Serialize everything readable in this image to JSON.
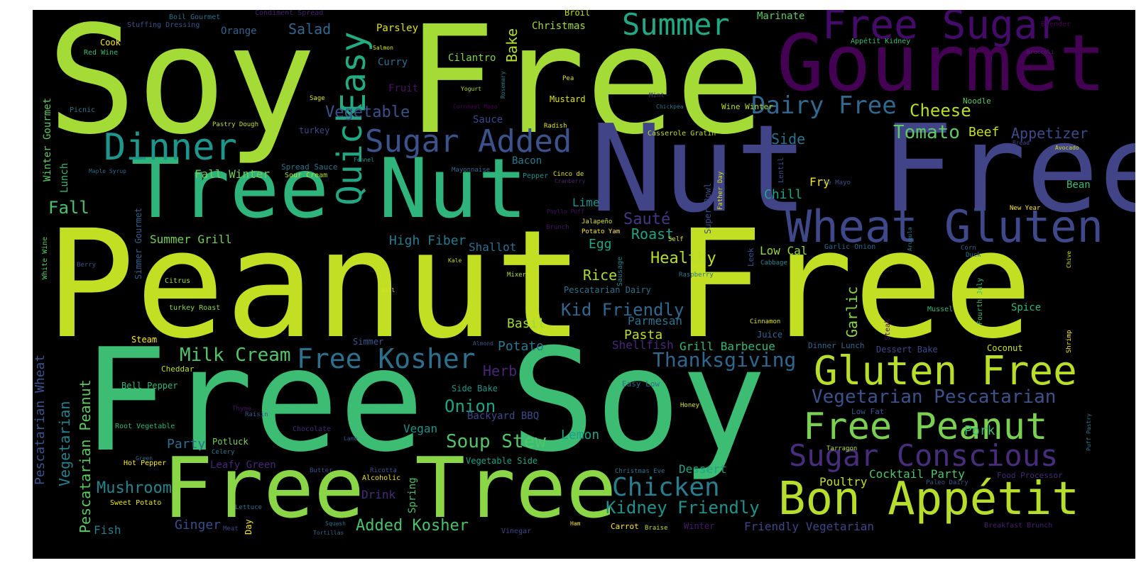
{
  "colors": {
    "background": "#000000",
    "page": "#ffffff"
  },
  "words": [
    {
      "text": "Soy Free",
      "color": "#a5db36",
      "size": 210
    },
    {
      "text": "Peanut Free",
      "color": "#c2df23",
      "size": 210
    },
    {
      "text": "Free Soy",
      "color": "#3dbc74",
      "size": 200
    },
    {
      "text": "Nut Free",
      "color": "#414487",
      "size": 170
    },
    {
      "text": "Free Tree",
      "color": "#8bd646",
      "size": 118
    },
    {
      "text": "Gourmet",
      "color": "#440154",
      "size": 110
    },
    {
      "text": "Tree Nut",
      "color": "#2fb47c",
      "size": 116
    },
    {
      "text": "Free Sugar",
      "color": "#450b6b",
      "size": 56
    },
    {
      "text": "Wheat Gluten",
      "color": "#3f4889",
      "size": 62
    },
    {
      "text": "Bon Appétit",
      "color": "#b6de2b",
      "size": 64
    },
    {
      "text": "Gluten Free",
      "color": "#b8de29",
      "size": 56
    },
    {
      "text": "Free Peanut",
      "color": "#7ad151",
      "size": 52
    },
    {
      "text": "Sugar Conscious",
      "color": "#472d7b",
      "size": 42
    },
    {
      "text": "Summer",
      "color": "#22a884",
      "size": 42
    },
    {
      "text": "Dinner",
      "color": "#1f968b",
      "size": 52
    },
    {
      "text": "Sugar Added",
      "color": "#3b528b",
      "size": 44
    },
    {
      "text": "Easy",
      "color": "#25ab82",
      "size": 48
    },
    {
      "text": "Quick",
      "color": "#22a785",
      "size": 48
    },
    {
      "text": "Dairy Free",
      "color": "#31688e",
      "size": 34
    },
    {
      "text": "Cheese",
      "color": "#b5de2b",
      "size": 24
    },
    {
      "text": "Tomato",
      "color": "#5ec962",
      "size": 26
    },
    {
      "text": "Beef",
      "color": "#c8e020",
      "size": 18
    },
    {
      "text": "Appetizer",
      "color": "#3e4a89",
      "size": 20
    },
    {
      "text": "Side",
      "color": "#2c728e",
      "size": 20
    },
    {
      "text": "Chicken",
      "color": "#287d8e",
      "size": 36
    },
    {
      "text": "Kidney Friendly",
      "color": "#21918c",
      "size": 24
    },
    {
      "text": "Vegetarian Pescatarian",
      "color": "#3b528b",
      "size": 26
    },
    {
      "text": "Free Kosher",
      "color": "#2d708e",
      "size": 38
    },
    {
      "text": "Milk Cream",
      "color": "#52c569",
      "size": 26
    },
    {
      "text": "Thanksgiving",
      "color": "#30678d",
      "size": 28
    },
    {
      "text": "Soup Stew",
      "color": "#52c569",
      "size": 26
    },
    {
      "text": "Onion",
      "color": "#20a386",
      "size": 24
    },
    {
      "text": "Added Kosher",
      "color": "#4ac16d",
      "size": 22
    },
    {
      "text": "Mushroom",
      "color": "#25858e",
      "size": 22
    },
    {
      "text": "Vegetable",
      "color": "#3b528b",
      "size": 22
    },
    {
      "text": "Salad",
      "color": "#31688e",
      "size": 20
    },
    {
      "text": "Fall",
      "color": "#4ac16d",
      "size": 24
    },
    {
      "text": "Fall Winter",
      "color": "#6ece58",
      "size": 16
    },
    {
      "text": "Summer Grill",
      "color": "#73d056",
      "size": 16
    },
    {
      "text": "High Fiber",
      "color": "#287c8e",
      "size": 18
    },
    {
      "text": "Shallot",
      "color": "#2d708e",
      "size": 16
    },
    {
      "text": "Healthy",
      "color": "#b8de29",
      "size": 22
    },
    {
      "text": "Sauté",
      "color": "#443983",
      "size": 22
    },
    {
      "text": "Roast",
      "color": "#20a386",
      "size": 20
    },
    {
      "text": "Rice",
      "color": "#a8db34",
      "size": 20
    },
    {
      "text": "Egg",
      "color": "#21a685",
      "size": 18
    },
    {
      "text": "Kid Friendly",
      "color": "#31688e",
      "size": 24
    },
    {
      "text": "Basil",
      "color": "#9fda3a",
      "size": 18
    },
    {
      "text": "Potato",
      "color": "#2a788e",
      "size": 18
    },
    {
      "text": "Pasta",
      "color": "#bddf26",
      "size": 18
    },
    {
      "text": "Parmesan",
      "color": "#2c728e",
      "size": 16
    },
    {
      "text": "Shellfish",
      "color": "#482878",
      "size": 16
    },
    {
      "text": "Grill Barbecue",
      "color": "#35b779",
      "size": 16
    },
    {
      "text": "Herb",
      "color": "#482576",
      "size": 20
    },
    {
      "text": "Vegan",
      "color": "#21918c",
      "size": 16
    },
    {
      "text": "Lemon",
      "color": "#1fa088",
      "size": 18
    },
    {
      "text": "Party",
      "color": "#2e6e8e",
      "size": 18
    },
    {
      "text": "Ginger",
      "color": "#3e4c8a",
      "size": 18
    },
    {
      "text": "Drink",
      "color": "#472c7a",
      "size": 16
    },
    {
      "text": "Fish",
      "color": "#287c8e",
      "size": 16
    },
    {
      "text": "Pork",
      "color": "#3dbc74",
      "size": 18
    },
    {
      "text": "Poultry",
      "color": "#c5e021",
      "size": 16
    },
    {
      "text": "Dessert",
      "color": "#20a486",
      "size": 16
    },
    {
      "text": "Cocktail Party",
      "color": "#4ec36b",
      "size": 16
    },
    {
      "text": "Friendly Vegetarian",
      "color": "#404588",
      "size": 16
    },
    {
      "text": "Chill",
      "color": "#20a386",
      "size": 18
    },
    {
      "text": "Fry",
      "color": "#f1e51d",
      "size": 16
    },
    {
      "text": "Low Cal",
      "color": "#95d840",
      "size": 16
    },
    {
      "text": "Lime",
      "color": "#21918c",
      "size": 16
    },
    {
      "text": "Bacon",
      "color": "#2a788e",
      "size": 14
    },
    {
      "text": "Cilantro",
      "color": "#7fd34e",
      "size": 14
    },
    {
      "text": "Curry",
      "color": "#2f6c8e",
      "size": 14
    },
    {
      "text": "Fruit",
      "color": "#471063",
      "size": 14
    },
    {
      "text": "Sauce",
      "color": "#3e4989",
      "size": 14
    },
    {
      "text": "Parsley",
      "color": "#dde318",
      "size": 14
    },
    {
      "text": "Orange",
      "color": "#33638d",
      "size": 14
    },
    {
      "text": "Christmas",
      "color": "#a2da37",
      "size": 14
    },
    {
      "text": "Marinate",
      "color": "#5ec962",
      "size": 14
    },
    {
      "text": "Broil",
      "color": "#bddf26",
      "size": 12
    },
    {
      "text": "Mustard",
      "color": "#dde318",
      "size": 12
    },
    {
      "text": "Spice",
      "color": "#35b779",
      "size": 14
    },
    {
      "text": "Bean",
      "color": "#3dbc74",
      "size": 14
    },
    {
      "text": "Coconut",
      "color": "#c8e020",
      "size": 12
    },
    {
      "text": "Dessert Bake",
      "color": "#3f4889",
      "size": 12
    },
    {
      "text": "Juice",
      "color": "#31688e",
      "size": 12
    },
    {
      "text": "Steam",
      "color": "#fde725",
      "size": 12
    },
    {
      "text": "Simmer",
      "color": "#39568c",
      "size": 12
    },
    {
      "text": "Cheddar",
      "color": "#bddf26",
      "size": 11
    },
    {
      "text": "Bell Pepper",
      "color": "#35b779",
      "size": 12
    },
    {
      "text": "Wine Winter",
      "color": "#b5de2b",
      "size": 11
    },
    {
      "text": "Noodle",
      "color": "#5ec962",
      "size": 11
    },
    {
      "text": "Garlic Onion",
      "color": "#31688e",
      "size": 10
    },
    {
      "text": "Casserole Gratin",
      "color": "#bddf26",
      "size": 10
    },
    {
      "text": "Pescatarian Dairy",
      "color": "#2c728e",
      "size": 12
    },
    {
      "text": "Easy Low",
      "color": "#2d708e",
      "size": 11
    },
    {
      "text": "Side Bake",
      "color": "#21918c",
      "size": 12
    },
    {
      "text": "Backyard BBQ",
      "color": "#3e4989",
      "size": 14
    },
    {
      "text": "Vegetable Side",
      "color": "#1fa188",
      "size": 12
    },
    {
      "text": "Potluck",
      "color": "#7ad151",
      "size": 12
    },
    {
      "text": "Leafy Green",
      "color": "#482576",
      "size": 14
    },
    {
      "text": "Root Vegetable",
      "color": "#35b779",
      "size": 10
    },
    {
      "text": "Hot Pepper",
      "color": "#fde725",
      "size": 10
    },
    {
      "text": "Sweet Potato",
      "color": "#e5e419",
      "size": 10
    },
    {
      "text": "Chocolate",
      "color": "#482878",
      "size": 10
    },
    {
      "text": "Alcoholic",
      "color": "#f1e51d",
      "size": 10
    },
    {
      "text": "Low Fat",
      "color": "#3b528b",
      "size": 11
    },
    {
      "text": "Honey",
      "color": "#dde318",
      "size": 9
    },
    {
      "text": "Tarragon",
      "color": "#b5de2b",
      "size": 9
    },
    {
      "text": "Christmas Eve",
      "color": "#2c728e",
      "size": 9
    },
    {
      "text": "Food Processor",
      "color": "#482878",
      "size": 11
    },
    {
      "text": "Paleo Dairy",
      "color": "#3b528b",
      "size": 9
    },
    {
      "text": "Breakfast Brunch",
      "color": "#481f70",
      "size": 10
    },
    {
      "text": "Carrot",
      "color": "#fde725",
      "size": 11
    },
    {
      "text": "Braise",
      "color": "#b8de29",
      "size": 9
    },
    {
      "text": "Winter",
      "color": "#481b6d",
      "size": 12
    },
    {
      "text": "Vinegar",
      "color": "#3e4989",
      "size": 10
    },
    {
      "text": "Ham",
      "color": "#fde725",
      "size": 8
    },
    {
      "text": "Tortillas",
      "color": "#31688e",
      "size": 8
    },
    {
      "text": "Squash",
      "color": "#2c728e",
      "size": 8
    },
    {
      "text": "Meat",
      "color": "#404588",
      "size": 9
    },
    {
      "text": "Lettuce",
      "color": "#2c728e",
      "size": 9
    },
    {
      "text": "Ricotta",
      "color": "#3b528b",
      "size": 9
    },
    {
      "text": "Butter",
      "color": "#3e4c8a",
      "size": 9
    },
    {
      "text": "Lamb",
      "color": "#3b528b",
      "size": 8
    },
    {
      "text": "Celery",
      "color": "#2a788e",
      "size": 9
    },
    {
      "text": "Green",
      "color": "#31688e",
      "size": 8
    },
    {
      "text": "Raisin",
      "color": "#39568c",
      "size": 9
    },
    {
      "text": "Thyme",
      "color": "#471063",
      "size": 9
    },
    {
      "text": "Almond",
      "color": "#3b528b",
      "size": 8
    },
    {
      "text": "Dinner Lunch",
      "color": "#31688e",
      "size": 11
    },
    {
      "text": "Cinnamon",
      "color": "#dde318",
      "size": 9
    },
    {
      "text": "Mussel",
      "color": "#35b779",
      "size": 10
    },
    {
      "text": "Cabbage",
      "color": "#25848e",
      "size": 9
    },
    {
      "text": "Duck",
      "color": "#2c728e",
      "size": 9
    },
    {
      "text": "Corn",
      "color": "#355f8d",
      "size": 9
    },
    {
      "text": "New Year",
      "color": "#fde725",
      "size": 9
    },
    {
      "text": "Self",
      "color": "#dde318",
      "size": 9
    },
    {
      "text": "Potato Yam",
      "color": "#fde725",
      "size": 9
    },
    {
      "text": "Jalapeño",
      "color": "#dde318",
      "size": 9
    },
    {
      "text": "Brunch",
      "color": "#471063",
      "size": 9
    },
    {
      "text": "Phyllo Puff",
      "color": "#471063",
      "size": 8
    },
    {
      "text": "Cinco de",
      "color": "#dde318",
      "size": 9
    },
    {
      "text": "Cranberry",
      "color": "#481f70",
      "size": 8
    },
    {
      "text": "Pepper",
      "color": "#21918c",
      "size": 10
    },
    {
      "text": "Raspberry",
      "color": "#2a788e",
      "size": 9
    },
    {
      "text": "de Mayo",
      "color": "#3b528b",
      "size": 9
    },
    {
      "text": "Mayonnaise",
      "color": "#31688e",
      "size": 9
    },
    {
      "text": "Fennel",
      "color": "#21918c",
      "size": 8
    },
    {
      "text": "Radish",
      "color": "#e5e419",
      "size": 9
    },
    {
      "text": "Pea",
      "color": "#dde318",
      "size": 9
    },
    {
      "text": "Yogurt",
      "color": "#b5de2b",
      "size": 8
    },
    {
      "text": "Cornmeal Masa",
      "color": "#440154",
      "size": 8
    },
    {
      "text": "Chickpea",
      "color": "#2a788e",
      "size": 8
    },
    {
      "text": "Mint",
      "color": "#46327e",
      "size": 9
    },
    {
      "text": "Sage",
      "color": "#dde318",
      "size": 9
    },
    {
      "text": "Salmon",
      "color": "#dde318",
      "size": 8
    },
    {
      "text": "Bread",
      "color": "#404588",
      "size": 8
    },
    {
      "text": "Avocado",
      "color": "#c8e020",
      "size": 8
    },
    {
      "text": "Blender",
      "color": "#440154",
      "size": 10
    },
    {
      "text": "Broccoli",
      "color": "#481f70",
      "size": 8
    },
    {
      "text": "Appétit Kidney",
      "color": "#3dbc74",
      "size": 10
    },
    {
      "text": "Cook",
      "color": "#fde725",
      "size": 12
    },
    {
      "text": "Red Wine",
      "color": "#3dbc74",
      "size": 10
    },
    {
      "text": "Stuffing Dressing",
      "color": "#3b528b",
      "size": 10
    },
    {
      "text": "Boil Gourmet",
      "color": "#2c728e",
      "size": 10
    },
    {
      "text": "Condiment Spread",
      "color": "#481f70",
      "size": 10
    },
    {
      "text": "Picnic",
      "color": "#2a788e",
      "size": 10
    },
    {
      "text": "Pastry Dough",
      "color": "#bddf26",
      "size": 9
    },
    {
      "text": "turkey",
      "color": "#3e4989",
      "size": 12
    },
    {
      "text": "Spread Sauce",
      "color": "#2c728e",
      "size": 11
    },
    {
      "text": "Sour Cream",
      "color": "#b5de2b",
      "size": 10
    },
    {
      "text": "Maple Syrup",
      "color": "#31688e",
      "size": 8
    },
    {
      "text": "Berry",
      "color": "#3b528b",
      "size": 9
    },
    {
      "text": "Citrus",
      "color": "#9fda3a",
      "size": 10
    },
    {
      "text": "turkey Roast",
      "color": "#8bd646",
      "size": 10
    },
    {
      "text": "Kale",
      "color": "#b5de2b",
      "size": 8
    },
    {
      "text": "Mixer",
      "color": "#b5de2b",
      "size": 9
    },
    {
      "text": "Dill",
      "color": "#dde318",
      "size": 8
    },
    {
      "text": "Winter Gourmet",
      "color": "#5ec962",
      "size": 14
    },
    {
      "text": "Lunch",
      "color": "#35b779",
      "size": 14
    },
    {
      "text": "Simmer Gourmet",
      "color": "#355f8d",
      "size": 12
    },
    {
      "text": "White Wine",
      "color": "#5ec962",
      "size": 10
    },
    {
      "text": "Pescatarian Wheat",
      "color": "#3b528b",
      "size": 18
    },
    {
      "text": "Vegetarian",
      "color": "#26828e",
      "size": 20
    },
    {
      "text": "Pescatarian Peanut",
      "color": "#5ec962",
      "size": 20
    },
    {
      "text": "Bake",
      "color": "#b5de2b",
      "size": 20
    },
    {
      "text": "Rosemary",
      "color": "#26828e",
      "size": 8
    },
    {
      "text": "Spring",
      "color": "#4ac16d",
      "size": 14
    },
    {
      "text": "Day",
      "color": "#fde725",
      "size": 12
    },
    {
      "text": "Garlic",
      "color": "#8bd646",
      "size": 20
    },
    {
      "text": "Super Bowl",
      "color": "#3e4989",
      "size": 12
    },
    {
      "text": "Father Day",
      "color": "#dde318",
      "size": 9
    },
    {
      "text": "Lentil",
      "color": "#3b528b",
      "size": 10
    },
    {
      "text": "Sausage",
      "color": "#26828e",
      "size": 10
    },
    {
      "text": "Leek",
      "color": "#3b528b",
      "size": 11
    },
    {
      "text": "Steak",
      "color": "#471063",
      "size": 10
    },
    {
      "text": "Arugula",
      "color": "#2a788e",
      "size": 8
    },
    {
      "text": "Fourth July",
      "color": "#3dbc74",
      "size": 10
    },
    {
      "text": "Chive",
      "color": "#dde318",
      "size": 8
    },
    {
      "text": "Shrimp",
      "color": "#fde725",
      "size": 9
    },
    {
      "text": "Puff Pastry",
      "color": "#2a788e",
      "size": 8
    }
  ]
}
